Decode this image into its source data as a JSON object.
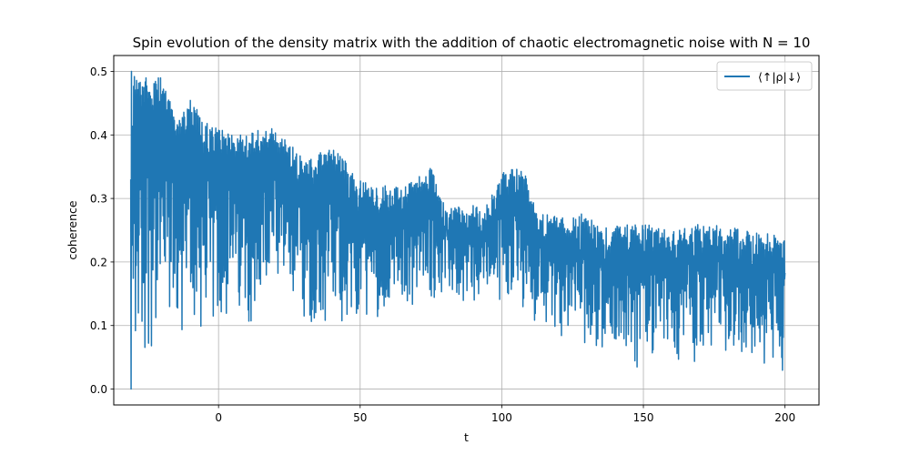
{
  "chart_data": {
    "type": "line",
    "title": "Spin evolution of the density matrix with the addition of chaotic electromagnetic noise with N = 10",
    "xlabel": "t",
    "ylabel": "coherence",
    "xlim": [
      -37,
      212
    ],
    "ylim": [
      -0.025,
      0.525
    ],
    "x_ticks": [
      0,
      50,
      100,
      150,
      200
    ],
    "y_ticks": [
      0.0,
      0.1,
      0.2,
      0.3,
      0.4,
      0.5
    ],
    "x_tick_labels": [
      "0",
      "50",
      "100",
      "150",
      "200"
    ],
    "y_tick_labels": [
      "0.0",
      "0.1",
      "0.2",
      "0.3",
      "0.4",
      "0.5"
    ],
    "grid": true,
    "legend_position": "top-right",
    "series": [
      {
        "name": "⟨↑|ρ|↓⟩",
        "color": "#1f77b4",
        "x_range": [
          -31,
          200
        ],
        "upper_envelope": {
          "t": [
            -31,
            -30,
            -27,
            -20,
            -15,
            -10,
            -5,
            0,
            5,
            10,
            15,
            20,
            25,
            30,
            35,
            40,
            45,
            50,
            55,
            60,
            65,
            70,
            72,
            75,
            78,
            80,
            85,
            90,
            95,
            100,
            103,
            105,
            108,
            110,
            115,
            120,
            125,
            130,
            135,
            140,
            145,
            150,
            160,
            170,
            180,
            190,
            200
          ],
          "coherence": [
            0.33,
            0.5,
            0.49,
            0.49,
            0.43,
            0.46,
            0.42,
            0.41,
            0.4,
            0.4,
            0.41,
            0.41,
            0.39,
            0.36,
            0.37,
            0.38,
            0.36,
            0.33,
            0.32,
            0.32,
            0.32,
            0.33,
            0.34,
            0.35,
            0.31,
            0.29,
            0.29,
            0.29,
            0.29,
            0.34,
            0.35,
            0.35,
            0.35,
            0.3,
            0.28,
            0.27,
            0.27,
            0.28,
            0.25,
            0.26,
            0.26,
            0.26,
            0.25,
            0.26,
            0.26,
            0.25,
            0.24
          ]
        },
        "lower_envelope": {
          "t": [
            -31,
            -25,
            -15,
            -5,
            0,
            10,
            20,
            30,
            40,
            50,
            60,
            70,
            80,
            90,
            100,
            110,
            120,
            130,
            140,
            150,
            160,
            170,
            180,
            190,
            200
          ],
          "coherence": [
            0.0,
            0.05,
            0.06,
            0.07,
            0.09,
            0.1,
            0.11,
            0.1,
            0.09,
            0.1,
            0.12,
            0.13,
            0.14,
            0.12,
            0.14,
            0.11,
            0.08,
            0.06,
            0.05,
            0.03,
            0.04,
            0.04,
            0.05,
            0.04,
            0.01
          ]
        }
      }
    ]
  }
}
